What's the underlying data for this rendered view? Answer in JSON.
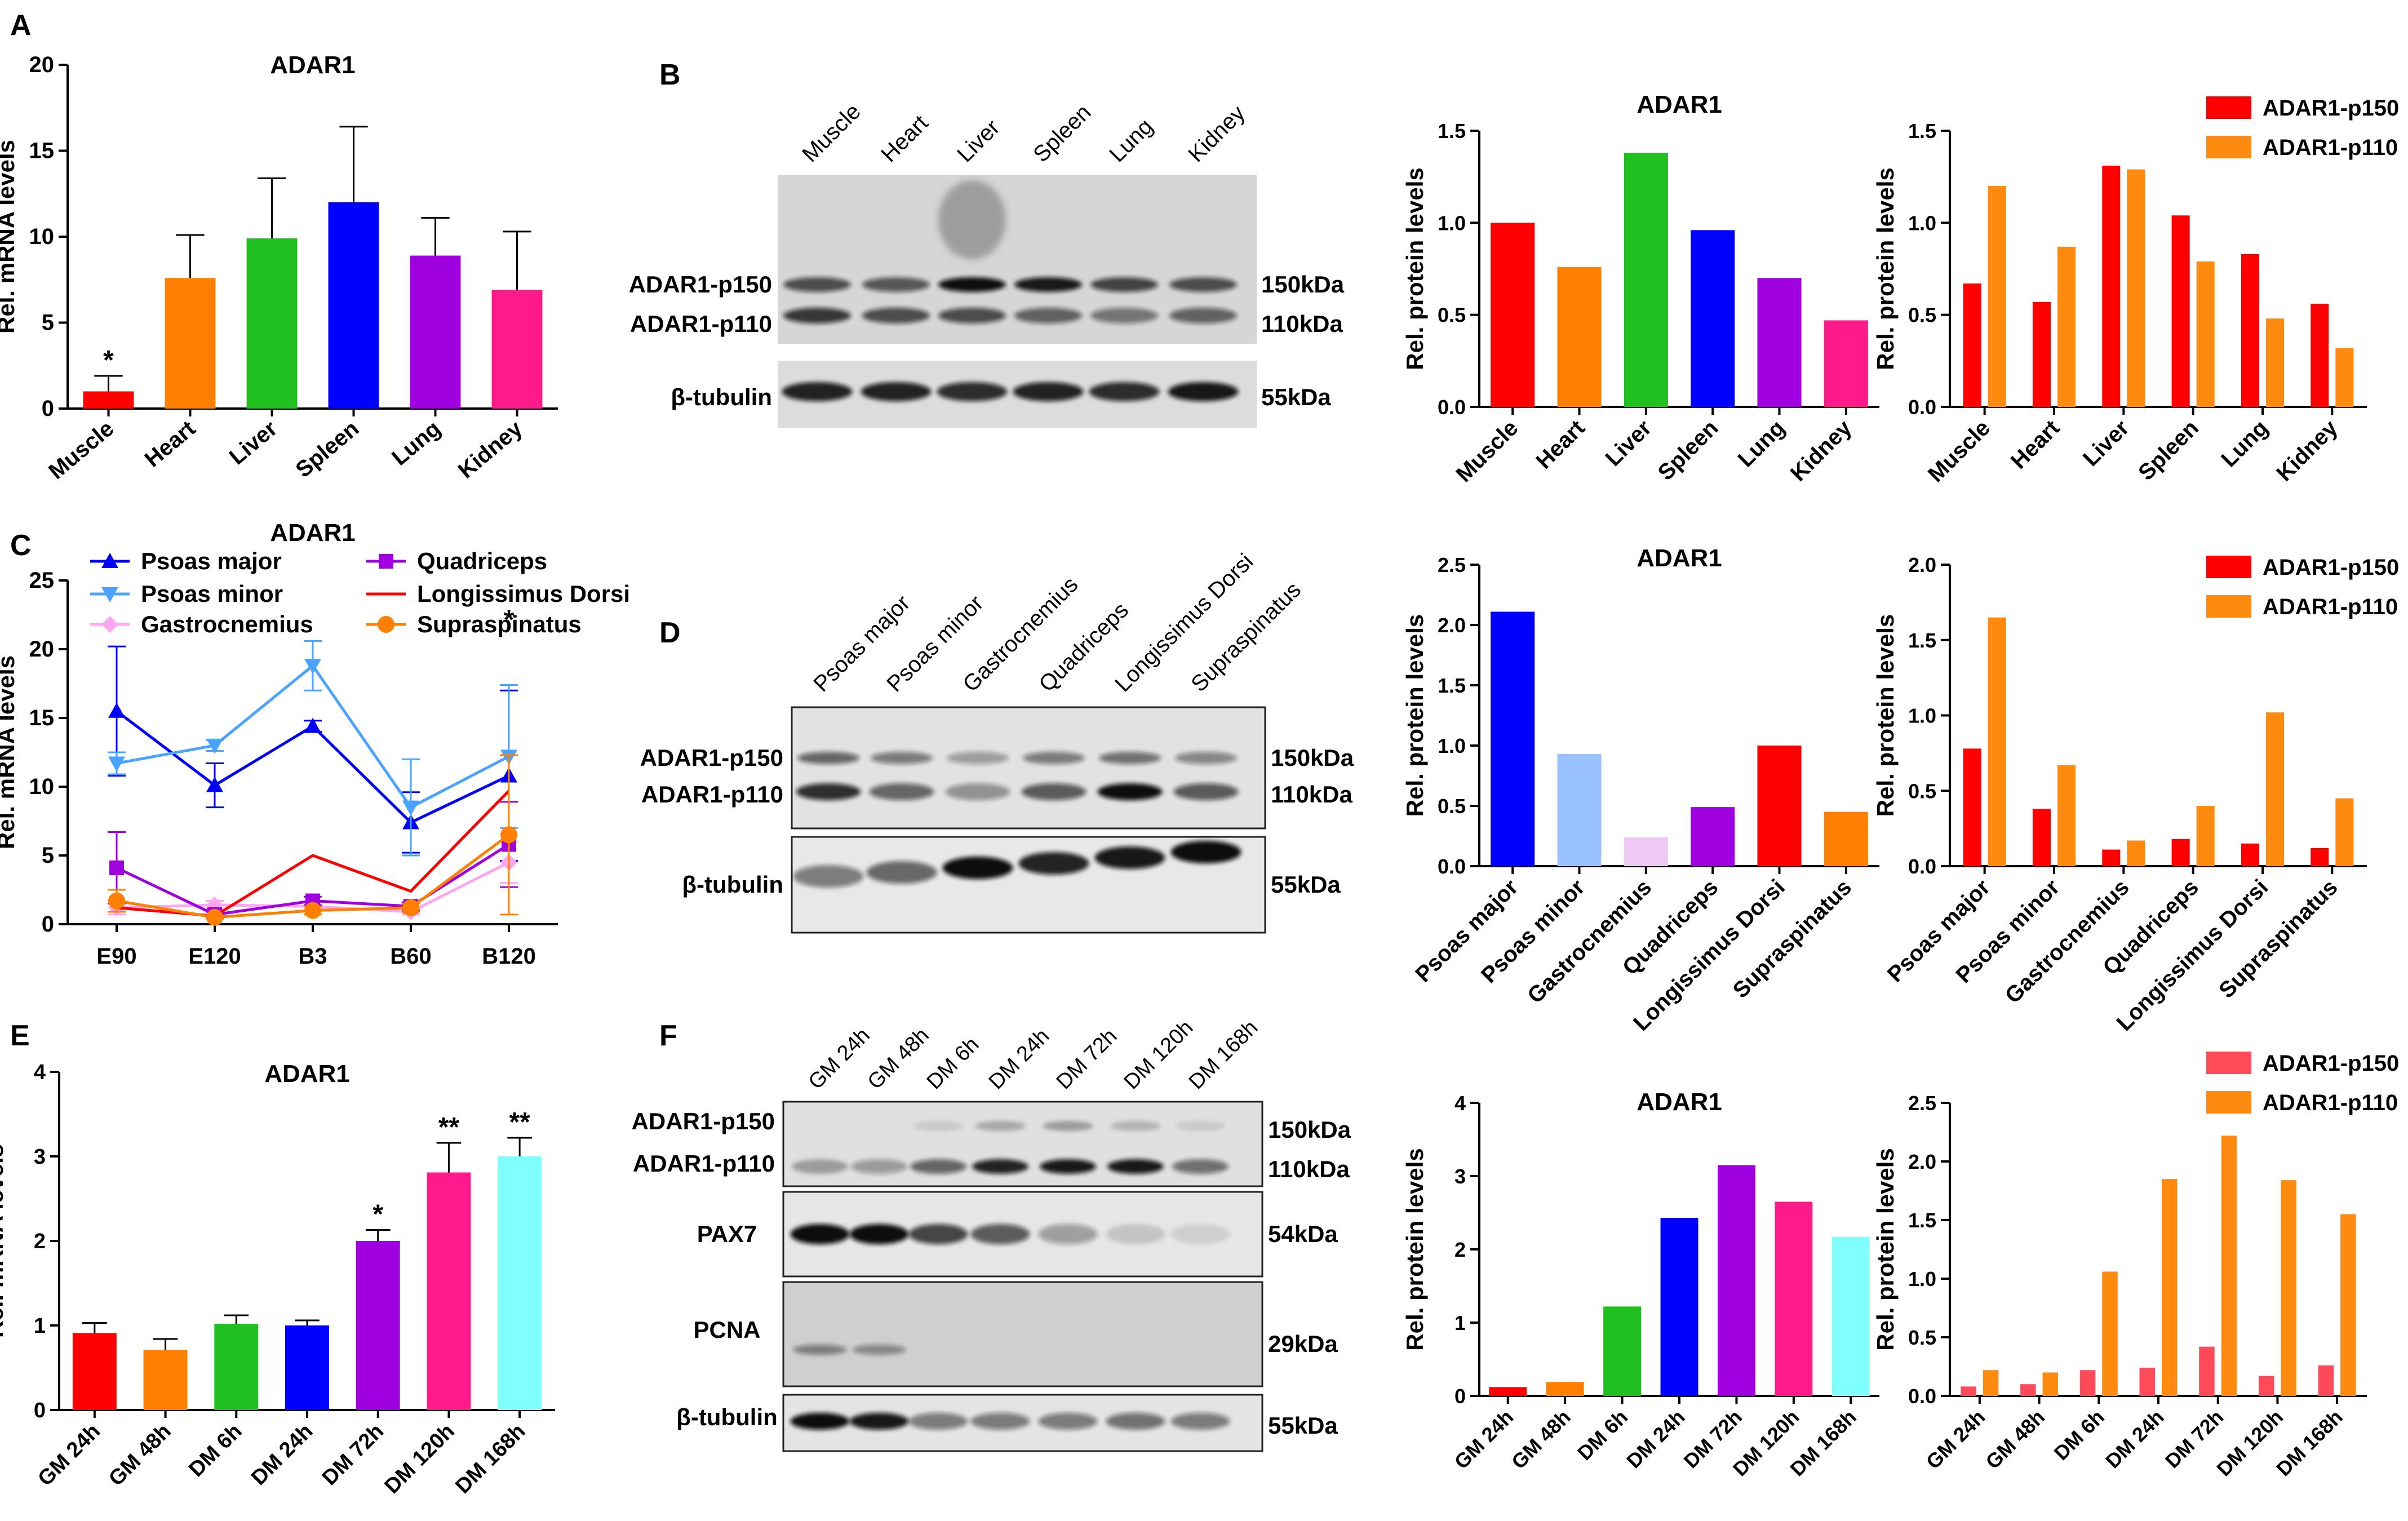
{
  "colors": {
    "tissue": [
      "#ff0000",
      "#ff8000",
      "#20c020",
      "#0000ff",
      "#a000e0",
      "#ff1a8c"
    ],
    "muscle": [
      "#0000ff",
      "#99c2ff",
      "#f0c8f5",
      "#a000e0",
      "#ff0000",
      "#ff8000"
    ],
    "time": [
      "#ff0000",
      "#ff8000",
      "#20c020",
      "#0000ff",
      "#a000e0",
      "#ff1a8c",
      "#80ffff"
    ],
    "p150": "#ff0000",
    "p110": "#ff8a10",
    "p150_light": "#ff4a5a",
    "lines": {
      "Psoas major": "#0000ff",
      "Psoas minor": "#4aa3ff",
      "Gastrocnemius": "#ffa6f0",
      "Quadriceps": "#a000e0",
      "Longissimus Dorsi": "#ff0000",
      "Supraspinatus": "#ff8000"
    }
  },
  "panel_labels": [
    "A",
    "B",
    "C",
    "D",
    "E",
    "F"
  ],
  "blots": {
    "B": {
      "lanes": [
        "Muscle",
        "Heart",
        "Liver",
        "Spleen",
        "Lung",
        "Kidney"
      ],
      "left_labels": [
        "ADAR1-p150",
        "ADAR1-p110",
        "β-tubulin"
      ],
      "right_labels": [
        "150kDa",
        "110kDa",
        "55kDa"
      ]
    },
    "D": {
      "lanes": [
        "Psoas major",
        "Psoas minor",
        "Gastrocnemius",
        "Quadriceps",
        "Longissimus Dorsi",
        "Supraspinatus"
      ],
      "left_labels": [
        "ADAR1-p150",
        "ADAR1-p110",
        "β-tubulin"
      ],
      "right_labels": [
        "150kDa",
        "110kDa",
        "55kDa"
      ]
    },
    "F": {
      "lanes": [
        "GM 24h",
        "GM 48h",
        "DM 6h",
        "DM 24h",
        "DM 72h",
        "DM 120h",
        "DM 168h"
      ],
      "left_labels": [
        "ADAR1-p150",
        "ADAR1-p110",
        "PAX7",
        "PCNA",
        "β-tubulin"
      ],
      "right_labels": [
        "150kDa",
        "110kDa",
        "54kDa",
        "29kDa",
        "55kDa"
      ]
    }
  },
  "chart_data": [
    {
      "id": "A",
      "type": "bar",
      "title": "ADAR1",
      "ylabel": "Rel. mRNA levels",
      "categories": [
        "Muscle",
        "Heart",
        "Liver",
        "Spleen",
        "Lung",
        "Kidney"
      ],
      "values": [
        1.0,
        7.6,
        9.9,
        12.0,
        8.9,
        6.9
      ],
      "errors": [
        0.9,
        2.5,
        3.5,
        4.4,
        2.2,
        3.4
      ],
      "stars": [
        "*",
        "",
        "",
        "",
        "",
        ""
      ],
      "ylim": [
        0,
        20
      ],
      "yticks": [
        0,
        5,
        10,
        15,
        20
      ],
      "tick_labels": [
        "0",
        "5",
        "10",
        "15",
        "20"
      ],
      "palette": "tissue"
    },
    {
      "id": "B1",
      "type": "bar",
      "title": "ADAR1",
      "ylabel": "Rel. protein levels",
      "categories": [
        "Muscle",
        "Heart",
        "Liver",
        "Spleen",
        "Lung",
        "Kidney"
      ],
      "values": [
        1.0,
        0.76,
        1.38,
        0.96,
        0.7,
        0.47
      ],
      "ylim": [
        0,
        1.5
      ],
      "yticks": [
        0,
        0.5,
        1.0,
        1.5
      ],
      "tick_labels": [
        "0.0",
        "0.5",
        "1.0",
        "1.5"
      ],
      "palette": "tissue"
    },
    {
      "id": "B2",
      "type": "bar",
      "title": "",
      "ylabel": "Rel. protein levels",
      "categories": [
        "Muscle",
        "Heart",
        "Liver",
        "Spleen",
        "Lung",
        "Kidney"
      ],
      "series": [
        {
          "name": "ADAR1-p150",
          "values": [
            0.67,
            0.57,
            1.31,
            1.04,
            0.83,
            0.56
          ]
        },
        {
          "name": "ADAR1-p110",
          "values": [
            1.2,
            0.87,
            1.29,
            0.79,
            0.48,
            0.32
          ]
        }
      ],
      "ylim": [
        0,
        1.5
      ],
      "yticks": [
        0,
        0.5,
        1.0,
        1.5
      ],
      "tick_labels": [
        "0.0",
        "0.5",
        "1.0",
        "1.5"
      ],
      "legend": "top-right"
    },
    {
      "id": "C",
      "type": "line",
      "title": "ADAR1",
      "ylabel": "Rel. mRNA levels",
      "x": [
        "E90",
        "E120",
        "B3",
        "B60",
        "B120"
      ],
      "series": [
        {
          "name": "Psoas major",
          "values": [
            15.5,
            10.1,
            14.4,
            7.4,
            10.8
          ],
          "errors": [
            4.7,
            1.6,
            0.4,
            2.2,
            6.2
          ],
          "marker": "triangle-up"
        },
        {
          "name": "Psoas minor",
          "values": [
            11.7,
            13.0,
            18.8,
            8.5,
            12.2
          ],
          "errors": [
            0.8,
            0.4,
            1.8,
            3.5,
            5.2
          ],
          "marker": "triangle-down"
        },
        {
          "name": "Gastrocnemius",
          "values": [
            1.2,
            1.4,
            1.3,
            0.9,
            4.5
          ],
          "errors": [
            0.5,
            0.3,
            0.3,
            0.2,
            1.5
          ],
          "marker": "diamond"
        },
        {
          "name": "Quadriceps",
          "values": [
            4.1,
            0.7,
            1.7,
            1.3,
            5.8
          ],
          "errors": [
            2.6,
            0.2,
            0.3,
            0.3,
            3.1
          ],
          "marker": "square"
        },
        {
          "name": "Longissimus Dorsi",
          "values": [
            1.2,
            0.6,
            5.0,
            2.4,
            9.7
          ],
          "errors": [
            0,
            0,
            0,
            0,
            0
          ],
          "marker": "none"
        },
        {
          "name": "Supraspinatus",
          "values": [
            1.7,
            0.5,
            1.0,
            1.2,
            6.5
          ],
          "errors": [
            0.8,
            0.1,
            0.3,
            0.3,
            5.8
          ],
          "marker": "circle"
        }
      ],
      "stars": [
        "",
        "",
        "",
        "",
        "*"
      ],
      "ylim": [
        0,
        25
      ],
      "yticks": [
        0,
        5,
        10,
        15,
        20,
        25
      ],
      "tick_labels": [
        "0",
        "5",
        "10",
        "15",
        "20",
        "25"
      ]
    },
    {
      "id": "D1",
      "type": "bar",
      "title": "ADAR1",
      "ylabel": "Rel. protein levels",
      "categories": [
        "Psoas major",
        "Psoas minor",
        "Gastrocnemius",
        "Quadriceps",
        "Longissimus Dorsi",
        "Supraspinatus"
      ],
      "values": [
        2.11,
        0.93,
        0.24,
        0.49,
        1.0,
        0.45
      ],
      "ylim": [
        0,
        2.5
      ],
      "yticks": [
        0,
        0.5,
        1.0,
        1.5,
        2.0,
        2.5
      ],
      "tick_labels": [
        "0.0",
        "0.5",
        "1.0",
        "1.5",
        "2.0",
        "2.5"
      ],
      "palette": "muscle"
    },
    {
      "id": "D2",
      "type": "bar",
      "title": "",
      "ylabel": "Rel. protein levels",
      "categories": [
        "Psoas major",
        "Psoas minor",
        "Gastrocnemius",
        "Quadriceps",
        "Longissimus Dorsi",
        "Supraspinatus"
      ],
      "series": [
        {
          "name": "ADAR1-p150",
          "values": [
            0.78,
            0.38,
            0.11,
            0.18,
            0.15,
            0.12
          ]
        },
        {
          "name": "ADAR1-p110",
          "values": [
            1.65,
            0.67,
            0.17,
            0.4,
            1.02,
            0.45
          ]
        }
      ],
      "ylim": [
        0,
        2.0
      ],
      "yticks": [
        0,
        0.5,
        1.0,
        1.5,
        2.0
      ],
      "tick_labels": [
        "0.0",
        "0.5",
        "1.0",
        "1.5",
        "2.0"
      ],
      "legend": "top-right"
    },
    {
      "id": "E",
      "type": "bar",
      "title": "ADAR1",
      "ylabel": "Rel. mRNA levels",
      "categories": [
        "GM 24h",
        "GM 48h",
        "DM 6h",
        "DM 24h",
        "DM 72h",
        "DM 120h",
        "DM 168h"
      ],
      "values": [
        0.91,
        0.71,
        1.02,
        1.0,
        2.0,
        2.81,
        3.0
      ],
      "errors": [
        0.12,
        0.13,
        0.1,
        0.06,
        0.13,
        0.35,
        0.22
      ],
      "stars": [
        "",
        "",
        "",
        "",
        "*",
        "**",
        "**"
      ],
      "ylim": [
        0,
        4
      ],
      "yticks": [
        0,
        1,
        2,
        3,
        4
      ],
      "tick_labels": [
        "0",
        "1",
        "2",
        "3",
        "4"
      ],
      "palette": "time"
    },
    {
      "id": "F1",
      "type": "bar",
      "title": "ADAR1",
      "ylabel": "Rel. protein levels",
      "categories": [
        "GM 24h",
        "GM 48h",
        "DM 6h",
        "DM 24h",
        "DM 72h",
        "DM 120h",
        "DM 168h"
      ],
      "values": [
        0.12,
        0.19,
        1.22,
        2.43,
        3.15,
        2.65,
        2.17
      ],
      "ylim": [
        0,
        4
      ],
      "yticks": [
        0,
        1,
        2,
        3,
        4
      ],
      "tick_labels": [
        "0",
        "1",
        "2",
        "3",
        "4"
      ],
      "palette": "time"
    },
    {
      "id": "F2",
      "type": "bar",
      "title": "",
      "ylabel": "Rel. protein levels",
      "categories": [
        "GM 24h",
        "GM 48h",
        "DM 6h",
        "DM 24h",
        "DM 72h",
        "DM 120h",
        "DM 168h"
      ],
      "series": [
        {
          "name": "ADAR1-p150",
          "values": [
            0.08,
            0.1,
            0.22,
            0.24,
            0.42,
            0.17,
            0.26
          ]
        },
        {
          "name": "ADAR1-p110",
          "values": [
            0.22,
            0.2,
            1.06,
            1.85,
            2.22,
            1.84,
            1.55
          ]
        }
      ],
      "ylim": [
        0,
        2.5
      ],
      "yticks": [
        0,
        0.5,
        1.0,
        1.5,
        2.0,
        2.5
      ],
      "tick_labels": [
        "0.0",
        "0.5",
        "1.0",
        "1.5",
        "2.0",
        "2.5"
      ],
      "legend": "top-right"
    }
  ]
}
